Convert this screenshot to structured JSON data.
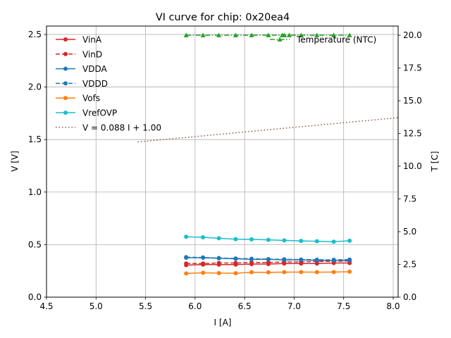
{
  "chart_data": {
    "type": "line",
    "title": "VI curve for chip: 0x20ea4",
    "xlabel": "I [A]",
    "ylabel": "V [V]",
    "y2label": "T [C]",
    "xlim": [
      4.5,
      8.05
    ],
    "ylim": [
      0,
      2.58
    ],
    "y2lim": [
      0,
      20.7
    ],
    "xticks": [
      4.5,
      5.0,
      5.5,
      6.0,
      6.5,
      7.0,
      7.5,
      8.0
    ],
    "yticks": [
      0.0,
      0.5,
      1.0,
      1.5,
      2.0,
      2.5
    ],
    "y2ticks": [
      0.0,
      2.5,
      5.0,
      7.5,
      10.0,
      12.5,
      15.0,
      17.5,
      20.0
    ],
    "x": [
      5.91,
      6.08,
      6.24,
      6.41,
      6.57,
      6.74,
      6.9,
      7.07,
      7.23,
      7.4,
      7.56
    ],
    "series": [
      {
        "name": "VinA",
        "color": "#d62728",
        "style": "solid",
        "marker": "circle",
        "axis": "left",
        "values": [
          0.305,
          0.31,
          0.31,
          0.31,
          0.315,
          0.315,
          0.32,
          0.32,
          0.32,
          0.325,
          0.325
        ]
      },
      {
        "name": "VinD",
        "color": "#d62728",
        "style": "dashed",
        "marker": "circle",
        "axis": "left",
        "values": [
          0.32,
          0.32,
          0.325,
          0.325,
          0.33,
          0.33,
          0.335,
          0.335,
          0.34,
          0.34,
          0.345
        ]
      },
      {
        "name": "VDDA",
        "color": "#1f77b4",
        "style": "solid",
        "marker": "circle",
        "axis": "left",
        "values": [
          0.375,
          0.375,
          0.37,
          0.365,
          0.36,
          0.36,
          0.355,
          0.355,
          0.35,
          0.35,
          0.35
        ]
      },
      {
        "name": "VDDD",
        "color": "#1f77b4",
        "style": "dashed",
        "marker": "circle",
        "axis": "left",
        "values": [
          0.38,
          0.378,
          0.372,
          0.368,
          0.365,
          0.362,
          0.36,
          0.358,
          0.356,
          0.355,
          0.358
        ]
      },
      {
        "name": "Vofs",
        "color": "#ff7f0e",
        "style": "solid",
        "marker": "circle",
        "axis": "left",
        "values": [
          0.225,
          0.232,
          0.229,
          0.228,
          0.237,
          0.236,
          0.238,
          0.239,
          0.238,
          0.239,
          0.242
        ]
      },
      {
        "name": "VrefOVP",
        "color": "#17becf",
        "style": "solid",
        "marker": "circle",
        "axis": "left",
        "values": [
          0.575,
          0.57,
          0.56,
          0.552,
          0.55,
          0.545,
          0.54,
          0.535,
          0.532,
          0.528,
          0.537
        ]
      },
      {
        "name": "V = 0.088 I + 1.00",
        "color": "#8c564b",
        "style": "dotted",
        "marker": "none",
        "axis": "left",
        "fit": true,
        "slope": 0.088,
        "intercept": 1.0,
        "x_range": [
          5.42,
          8.05
        ]
      },
      {
        "name": "Temperature (NTC)",
        "color": "#2ca02c",
        "style": "dashdot",
        "marker": "triangle",
        "axis": "right",
        "values": [
          20.0,
          20.0,
          20.0,
          20.0,
          20.0,
          20.0,
          20.0,
          20.0,
          20.0,
          20.0,
          20.0
        ],
        "extra_x": [
          6.88,
          6.95
        ]
      }
    ],
    "legend_left": [
      "VinA",
      "VinD",
      "VDDA",
      "VDDD",
      "Vofs",
      "VrefOVP",
      "V = 0.088 I + 1.00"
    ],
    "legend_right": [
      "Temperature (NTC)"
    ],
    "grid": true
  }
}
